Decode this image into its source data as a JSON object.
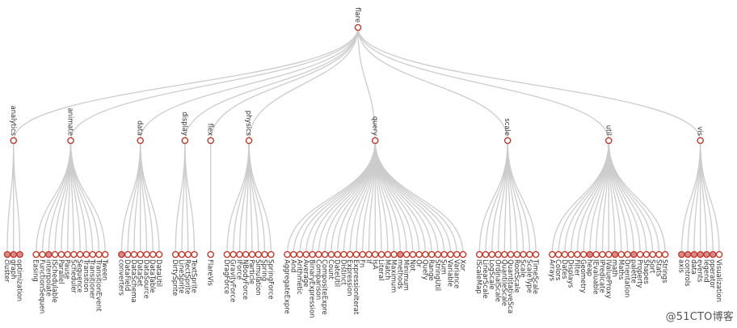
{
  "tree": {
    "name": "flare",
    "children": [
      {
        "name": "analytics",
        "children": [
          {
            "name": "cluster",
            "collapsed": true
          },
          {
            "name": "graph",
            "collapsed": true
          },
          {
            "name": "optimization",
            "collapsed": true
          }
        ]
      },
      {
        "name": "animate",
        "children": [
          {
            "name": "Easing"
          },
          {
            "name": "FunctionSequen"
          },
          {
            "name": "interpolate",
            "collapsed": true
          },
          {
            "name": "ISchedulable"
          },
          {
            "name": "Parallel"
          },
          {
            "name": "Pause"
          },
          {
            "name": "Scheduler"
          },
          {
            "name": "Sequence"
          },
          {
            "name": "Transition"
          },
          {
            "name": "Transitioner"
          },
          {
            "name": "TransitionEvent"
          },
          {
            "name": "Tween"
          }
        ]
      },
      {
        "name": "data",
        "children": [
          {
            "name": "converters",
            "collapsed": true
          },
          {
            "name": "DataField"
          },
          {
            "name": "DataSchema"
          },
          {
            "name": "DataSet"
          },
          {
            "name": "DataSource"
          },
          {
            "name": "DataTable"
          },
          {
            "name": "DataUtil"
          }
        ]
      },
      {
        "name": "display",
        "children": [
          {
            "name": "DirtySprite"
          },
          {
            "name": "LineSprite"
          },
          {
            "name": "RectSprite"
          },
          {
            "name": "TextSprite"
          }
        ]
      },
      {
        "name": "flex",
        "children": [
          {
            "name": "FlareVis"
          }
        ]
      },
      {
        "name": "physics",
        "children": [
          {
            "name": "DragForce"
          },
          {
            "name": "GravityForce"
          },
          {
            "name": "IForce"
          },
          {
            "name": "NBodyForce"
          },
          {
            "name": "Particle"
          },
          {
            "name": "Simulation"
          },
          {
            "name": "Spring"
          },
          {
            "name": "SpringForce"
          }
        ]
      },
      {
        "name": "query",
        "children": [
          {
            "name": "AggregateExpre"
          },
          {
            "name": "And"
          },
          {
            "name": "Arithmetic"
          },
          {
            "name": "Average"
          },
          {
            "name": "BinaryExpression"
          },
          {
            "name": "Comparison"
          },
          {
            "name": "CompositeExpre"
          },
          {
            "name": "Count"
          },
          {
            "name": "DateUtil"
          },
          {
            "name": "Distinct"
          },
          {
            "name": "Expression"
          },
          {
            "name": "ExpressionIterat"
          },
          {
            "name": "Fn"
          },
          {
            "name": "If"
          },
          {
            "name": "IsA"
          },
          {
            "name": "Literal"
          },
          {
            "name": "Match"
          },
          {
            "name": "Maximum"
          },
          {
            "name": "methods",
            "collapsed": true
          },
          {
            "name": "Minimum"
          },
          {
            "name": "Not"
          },
          {
            "name": "Or"
          },
          {
            "name": "Query"
          },
          {
            "name": "Range"
          },
          {
            "name": "StringUtil"
          },
          {
            "name": "Sum"
          },
          {
            "name": "Variable"
          },
          {
            "name": "Variance"
          },
          {
            "name": "Xor"
          }
        ]
      },
      {
        "name": "scale",
        "children": [
          {
            "name": "IScaleMap"
          },
          {
            "name": "LinearScale"
          },
          {
            "name": "LogScale"
          },
          {
            "name": "OrdinalScale"
          },
          {
            "name": "QuantileScale"
          },
          {
            "name": "QuantitativeSca"
          },
          {
            "name": "RootScale"
          },
          {
            "name": "Scale"
          },
          {
            "name": "ScaleType"
          },
          {
            "name": "TimeScale"
          }
        ]
      },
      {
        "name": "util",
        "children": [
          {
            "name": "Arrays"
          },
          {
            "name": "Colors"
          },
          {
            "name": "Dates"
          },
          {
            "name": "Displays"
          },
          {
            "name": "Filter"
          },
          {
            "name": "Geometry"
          },
          {
            "name": "heap",
            "collapsed": true
          },
          {
            "name": "IEvaluable"
          },
          {
            "name": "IPredicate"
          },
          {
            "name": "IValueProxy"
          },
          {
            "name": "math",
            "collapsed": true
          },
          {
            "name": "Maths"
          },
          {
            "name": "Orientation"
          },
          {
            "name": "palette",
            "collapsed": true
          },
          {
            "name": "Property"
          },
          {
            "name": "Shapes"
          },
          {
            "name": "Sort"
          },
          {
            "name": "Stats"
          },
          {
            "name": "Strings"
          }
        ]
      },
      {
        "name": "vis",
        "children": [
          {
            "name": "axis",
            "collapsed": true
          },
          {
            "name": "controls",
            "collapsed": true
          },
          {
            "name": "data",
            "collapsed": true
          },
          {
            "name": "events",
            "collapsed": true
          },
          {
            "name": "legend",
            "collapsed": true
          },
          {
            "name": "operator",
            "collapsed": true
          },
          {
            "name": "Visualization"
          }
        ]
      }
    ]
  },
  "colors": {
    "link": "#cccccc",
    "node_stroke": "#c0392b",
    "node_fill_leaf": "#ffffff",
    "node_fill_collapsed": "#d98c8c",
    "text": "#333333"
  },
  "watermark": "@51CTO博客"
}
